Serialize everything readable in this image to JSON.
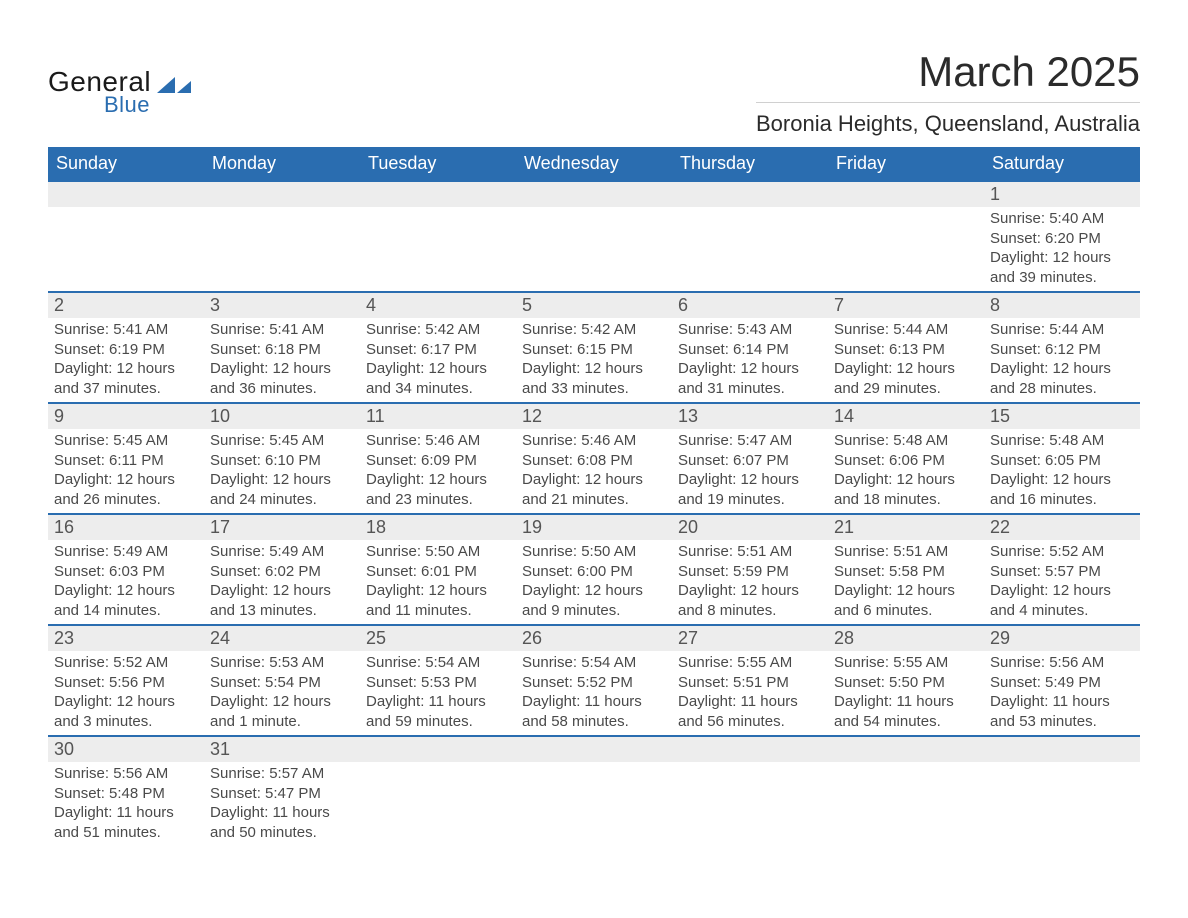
{
  "brand": {
    "name_part1": "General",
    "name_part2": "Blue",
    "color_text": "#1a1a1a",
    "color_accent": "#2a6db0"
  },
  "title": {
    "month": "March 2025",
    "location": "Boronia Heights, Queensland, Australia"
  },
  "calendar": {
    "type": "table",
    "header_bg": "#2a6db0",
    "header_fg": "#ffffff",
    "row_separator_color": "#2a6db0",
    "daynum_bg": "#ededed",
    "columns": [
      "Sunday",
      "Monday",
      "Tuesday",
      "Wednesday",
      "Thursday",
      "Friday",
      "Saturday"
    ],
    "weeks": [
      [
        {
          "n": "",
          "sunrise": "",
          "sunset": "",
          "daylight": ""
        },
        {
          "n": "",
          "sunrise": "",
          "sunset": "",
          "daylight": ""
        },
        {
          "n": "",
          "sunrise": "",
          "sunset": "",
          "daylight": ""
        },
        {
          "n": "",
          "sunrise": "",
          "sunset": "",
          "daylight": ""
        },
        {
          "n": "",
          "sunrise": "",
          "sunset": "",
          "daylight": ""
        },
        {
          "n": "",
          "sunrise": "",
          "sunset": "",
          "daylight": ""
        },
        {
          "n": "1",
          "sunrise": "Sunrise: 5:40 AM",
          "sunset": "Sunset: 6:20 PM",
          "daylight": "Daylight: 12 hours and 39 minutes."
        }
      ],
      [
        {
          "n": "2",
          "sunrise": "Sunrise: 5:41 AM",
          "sunset": "Sunset: 6:19 PM",
          "daylight": "Daylight: 12 hours and 37 minutes."
        },
        {
          "n": "3",
          "sunrise": "Sunrise: 5:41 AM",
          "sunset": "Sunset: 6:18 PM",
          "daylight": "Daylight: 12 hours and 36 minutes."
        },
        {
          "n": "4",
          "sunrise": "Sunrise: 5:42 AM",
          "sunset": "Sunset: 6:17 PM",
          "daylight": "Daylight: 12 hours and 34 minutes."
        },
        {
          "n": "5",
          "sunrise": "Sunrise: 5:42 AM",
          "sunset": "Sunset: 6:15 PM",
          "daylight": "Daylight: 12 hours and 33 minutes."
        },
        {
          "n": "6",
          "sunrise": "Sunrise: 5:43 AM",
          "sunset": "Sunset: 6:14 PM",
          "daylight": "Daylight: 12 hours and 31 minutes."
        },
        {
          "n": "7",
          "sunrise": "Sunrise: 5:44 AM",
          "sunset": "Sunset: 6:13 PM",
          "daylight": "Daylight: 12 hours and 29 minutes."
        },
        {
          "n": "8",
          "sunrise": "Sunrise: 5:44 AM",
          "sunset": "Sunset: 6:12 PM",
          "daylight": "Daylight: 12 hours and 28 minutes."
        }
      ],
      [
        {
          "n": "9",
          "sunrise": "Sunrise: 5:45 AM",
          "sunset": "Sunset: 6:11 PM",
          "daylight": "Daylight: 12 hours and 26 minutes."
        },
        {
          "n": "10",
          "sunrise": "Sunrise: 5:45 AM",
          "sunset": "Sunset: 6:10 PM",
          "daylight": "Daylight: 12 hours and 24 minutes."
        },
        {
          "n": "11",
          "sunrise": "Sunrise: 5:46 AM",
          "sunset": "Sunset: 6:09 PM",
          "daylight": "Daylight: 12 hours and 23 minutes."
        },
        {
          "n": "12",
          "sunrise": "Sunrise: 5:46 AM",
          "sunset": "Sunset: 6:08 PM",
          "daylight": "Daylight: 12 hours and 21 minutes."
        },
        {
          "n": "13",
          "sunrise": "Sunrise: 5:47 AM",
          "sunset": "Sunset: 6:07 PM",
          "daylight": "Daylight: 12 hours and 19 minutes."
        },
        {
          "n": "14",
          "sunrise": "Sunrise: 5:48 AM",
          "sunset": "Sunset: 6:06 PM",
          "daylight": "Daylight: 12 hours and 18 minutes."
        },
        {
          "n": "15",
          "sunrise": "Sunrise: 5:48 AM",
          "sunset": "Sunset: 6:05 PM",
          "daylight": "Daylight: 12 hours and 16 minutes."
        }
      ],
      [
        {
          "n": "16",
          "sunrise": "Sunrise: 5:49 AM",
          "sunset": "Sunset: 6:03 PM",
          "daylight": "Daylight: 12 hours and 14 minutes."
        },
        {
          "n": "17",
          "sunrise": "Sunrise: 5:49 AM",
          "sunset": "Sunset: 6:02 PM",
          "daylight": "Daylight: 12 hours and 13 minutes."
        },
        {
          "n": "18",
          "sunrise": "Sunrise: 5:50 AM",
          "sunset": "Sunset: 6:01 PM",
          "daylight": "Daylight: 12 hours and 11 minutes."
        },
        {
          "n": "19",
          "sunrise": "Sunrise: 5:50 AM",
          "sunset": "Sunset: 6:00 PM",
          "daylight": "Daylight: 12 hours and 9 minutes."
        },
        {
          "n": "20",
          "sunrise": "Sunrise: 5:51 AM",
          "sunset": "Sunset: 5:59 PM",
          "daylight": "Daylight: 12 hours and 8 minutes."
        },
        {
          "n": "21",
          "sunrise": "Sunrise: 5:51 AM",
          "sunset": "Sunset: 5:58 PM",
          "daylight": "Daylight: 12 hours and 6 minutes."
        },
        {
          "n": "22",
          "sunrise": "Sunrise: 5:52 AM",
          "sunset": "Sunset: 5:57 PM",
          "daylight": "Daylight: 12 hours and 4 minutes."
        }
      ],
      [
        {
          "n": "23",
          "sunrise": "Sunrise: 5:52 AM",
          "sunset": "Sunset: 5:56 PM",
          "daylight": "Daylight: 12 hours and 3 minutes."
        },
        {
          "n": "24",
          "sunrise": "Sunrise: 5:53 AM",
          "sunset": "Sunset: 5:54 PM",
          "daylight": "Daylight: 12 hours and 1 minute."
        },
        {
          "n": "25",
          "sunrise": "Sunrise: 5:54 AM",
          "sunset": "Sunset: 5:53 PM",
          "daylight": "Daylight: 11 hours and 59 minutes."
        },
        {
          "n": "26",
          "sunrise": "Sunrise: 5:54 AM",
          "sunset": "Sunset: 5:52 PM",
          "daylight": "Daylight: 11 hours and 58 minutes."
        },
        {
          "n": "27",
          "sunrise": "Sunrise: 5:55 AM",
          "sunset": "Sunset: 5:51 PM",
          "daylight": "Daylight: 11 hours and 56 minutes."
        },
        {
          "n": "28",
          "sunrise": "Sunrise: 5:55 AM",
          "sunset": "Sunset: 5:50 PM",
          "daylight": "Daylight: 11 hours and 54 minutes."
        },
        {
          "n": "29",
          "sunrise": "Sunrise: 5:56 AM",
          "sunset": "Sunset: 5:49 PM",
          "daylight": "Daylight: 11 hours and 53 minutes."
        }
      ],
      [
        {
          "n": "30",
          "sunrise": "Sunrise: 5:56 AM",
          "sunset": "Sunset: 5:48 PM",
          "daylight": "Daylight: 11 hours and 51 minutes."
        },
        {
          "n": "31",
          "sunrise": "Sunrise: 5:57 AM",
          "sunset": "Sunset: 5:47 PM",
          "daylight": "Daylight: 11 hours and 50 minutes."
        },
        {
          "n": "",
          "sunrise": "",
          "sunset": "",
          "daylight": ""
        },
        {
          "n": "",
          "sunrise": "",
          "sunset": "",
          "daylight": ""
        },
        {
          "n": "",
          "sunrise": "",
          "sunset": "",
          "daylight": ""
        },
        {
          "n": "",
          "sunrise": "",
          "sunset": "",
          "daylight": ""
        },
        {
          "n": "",
          "sunrise": "",
          "sunset": "",
          "daylight": ""
        }
      ]
    ]
  }
}
